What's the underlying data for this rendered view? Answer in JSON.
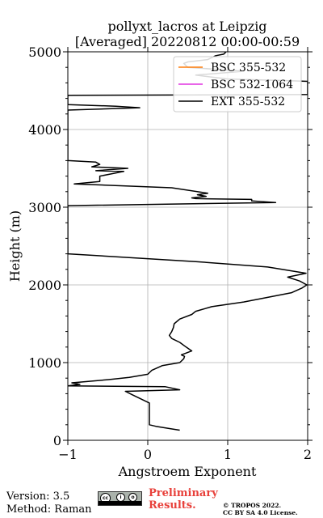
{
  "chart_data": {
    "type": "line",
    "title_line1": "pollyxt_lacros at Leipzig",
    "title_line2": "[Averaged] 20220812 00:00-00:59",
    "xlabel": "Angstroem Exponent",
    "ylabel": "Height (m)",
    "xlim": [
      -1,
      2
    ],
    "ylim": [
      0,
      5000
    ],
    "x_ticks": [
      "−1",
      "0",
      "1",
      "2"
    ],
    "y_ticks": [
      "0",
      "1000",
      "2000",
      "3000",
      "4000",
      "5000"
    ],
    "grid": true,
    "legend_position": "top-right",
    "series": [
      {
        "name": "BSC 355-532",
        "color": "#ff7f0e",
        "points": []
      },
      {
        "name": "BSC 532-1064",
        "color": "#e033e0",
        "points": []
      },
      {
        "name": "EXT 355-532",
        "color": "#000000",
        "points": [
          [
            0.4,
            130
          ],
          [
            0.28,
            150
          ],
          [
            0.1,
            180
          ],
          [
            0.02,
            200
          ],
          [
            0.02,
            400
          ],
          [
            0.02,
            480
          ],
          [
            -0.2,
            590
          ],
          [
            -0.28,
            630
          ],
          [
            0.4,
            650
          ],
          [
            0.22,
            690
          ],
          [
            -1.0,
            700
          ],
          [
            -0.85,
            720
          ],
          [
            -0.95,
            740
          ],
          [
            -0.5,
            780
          ],
          [
            -0.23,
            810
          ],
          [
            0.0,
            850
          ],
          [
            0.05,
            900
          ],
          [
            0.18,
            960
          ],
          [
            0.4,
            1000
          ],
          [
            0.45,
            1050
          ],
          [
            0.46,
            1080
          ],
          [
            0.42,
            1100
          ],
          [
            0.55,
            1150
          ],
          [
            0.48,
            1200
          ],
          [
            0.4,
            1260
          ],
          [
            0.3,
            1310
          ],
          [
            0.27,
            1350
          ],
          [
            0.3,
            1400
          ],
          [
            0.32,
            1450
          ],
          [
            0.33,
            1500
          ],
          [
            0.4,
            1560
          ],
          [
            0.55,
            1620
          ],
          [
            0.6,
            1660
          ],
          [
            0.8,
            1720
          ],
          [
            1.2,
            1780
          ],
          [
            1.5,
            1840
          ],
          [
            1.8,
            1900
          ],
          [
            1.93,
            1960
          ],
          [
            1.99,
            2000
          ],
          [
            1.9,
            2050
          ],
          [
            1.75,
            2100
          ],
          [
            1.98,
            2150
          ],
          [
            1.5,
            2230
          ],
          [
            0.6,
            2300
          ],
          [
            -1.0,
            2400
          ],
          [
            -1.0,
            3020
          ],
          [
            1.6,
            3060
          ],
          [
            1.3,
            3080
          ],
          [
            1.3,
            3100
          ],
          [
            0.6,
            3110
          ],
          [
            0.55,
            3120
          ],
          [
            0.73,
            3140
          ],
          [
            0.62,
            3160
          ],
          [
            0.75,
            3180
          ],
          [
            0.3,
            3250
          ],
          [
            -0.92,
            3300
          ],
          [
            -0.6,
            3330
          ],
          [
            -0.6,
            3400
          ],
          [
            -0.3,
            3460
          ],
          [
            -0.65,
            3470
          ],
          [
            -0.25,
            3500
          ],
          [
            -0.7,
            3520
          ],
          [
            -0.6,
            3550
          ],
          [
            -0.65,
            3580
          ],
          [
            -1.0,
            3600
          ],
          [
            -1.0,
            4250
          ],
          [
            -0.1,
            4280
          ],
          [
            -0.4,
            4300
          ],
          [
            -1.0,
            4320
          ],
          [
            -1.0,
            4440
          ],
          [
            2.0,
            4450
          ],
          [
            2.0,
            4620
          ],
          [
            1.7,
            4630
          ],
          [
            1.0,
            4650
          ],
          [
            0.6,
            4700
          ],
          [
            1.2,
            4750
          ],
          [
            0.5,
            4800
          ],
          [
            0.45,
            4850
          ],
          [
            0.5,
            4870
          ],
          [
            0.75,
            4900
          ],
          [
            0.85,
            4950
          ],
          [
            0.95,
            4970
          ],
          [
            0.98,
            5000
          ]
        ]
      }
    ]
  },
  "footer": {
    "version": "Version: 3.5",
    "method": "Method: Raman",
    "preliminary_line1": "Preliminary",
    "preliminary_line2": "Results.",
    "license_line1": "© TROPOS 2022.",
    "license_line2": "CC BY SA 4.0 License.",
    "cc_badge_text": [
      "cc",
      "i",
      "o"
    ]
  }
}
